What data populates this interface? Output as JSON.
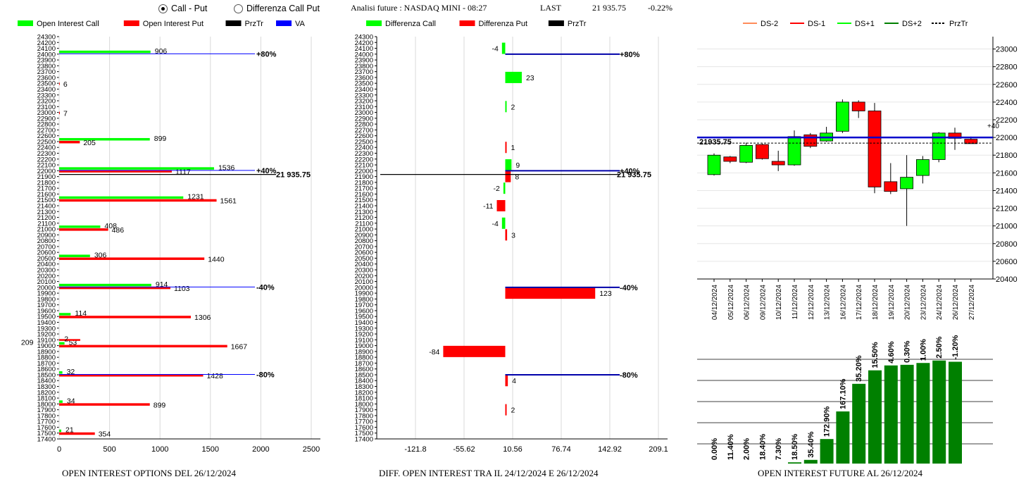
{
  "header": {
    "radio_call_put": "Call - Put",
    "radio_diff": "Differenza Call Put",
    "info": "Analisi future : NASDAQ MINI - 08:27",
    "last_label": "LAST",
    "last_value": "21 935.75",
    "last_change": "-0.22%"
  },
  "footers": {
    "left": "OPEN INTEREST OPTIONS DEL 26/12/2024",
    "middle": "DIFF. OPEN INTEREST TRA IL 24/12/2024 E 26/12/2024",
    "right": "OPEN INTEREST FUTURE AL 26/12/2024"
  },
  "colors": {
    "call": "#00ff00",
    "put": "#ff0000",
    "va": "#0000ff",
    "prztr": "#000000",
    "green_dark": "#008000"
  },
  "chart_data": [
    {
      "type": "bar",
      "id": "oi_options",
      "legend": [
        "Open Interest Call",
        "Open Interest Put",
        "PrzTr",
        "VA"
      ],
      "ylim": [
        17400,
        24300
      ],
      "y_tick_step": 100,
      "xlim": [
        0,
        2500
      ],
      "x_ticks": [
        "0",
        "500",
        "1000",
        "1500",
        "2000",
        "2500"
      ],
      "strikes": [
        24000,
        23500,
        23000,
        22500,
        22000,
        21500,
        21000,
        20500,
        20000,
        19500,
        19000,
        18500,
        18000,
        17500
      ],
      "call": [
        906,
        0,
        0,
        899,
        1536,
        1231,
        408,
        306,
        914,
        114,
        53,
        32,
        34,
        21
      ],
      "put": [
        0,
        6,
        7,
        205,
        1117,
        1561,
        486,
        1440,
        1103,
        1306,
        1667,
        1428,
        899,
        354
      ],
      "call_labels": [
        "906",
        "",
        "",
        "899",
        "1536",
        "1231",
        "408",
        "306",
        "914",
        "114",
        "53",
        "32",
        "34",
        "21"
      ],
      "put_labels": [
        "",
        "6",
        "7",
        "205",
        "1117",
        "1561",
        "486",
        "1440",
        "1103",
        "1306",
        "1667",
        "1428",
        "899",
        "354"
      ],
      "extra_labels": [
        {
          "strike": 19100,
          "text": "2"
        },
        {
          "strike": 19100,
          "text": "209",
          "offset": true
        }
      ],
      "va_lines": [
        {
          "strike": 24000,
          "label": "+80%"
        },
        {
          "strike": 22000,
          "label": "+40%"
        },
        {
          "strike": 20000,
          "label": "-40%"
        },
        {
          "strike": 18500,
          "label": "-80%"
        }
      ],
      "prztr": {
        "value": 21935.75,
        "label": "21 935.75"
      }
    },
    {
      "type": "bar",
      "id": "diff_oi",
      "legend": [
        "Differenza Call",
        "Differenza Put",
        "PrzTr"
      ],
      "ylim": [
        17400,
        24300
      ],
      "y_tick_step": 100,
      "xlim": [
        -121.8,
        209.1
      ],
      "x_ticks": [
        "-121.8",
        "-55.62",
        "10.56",
        "76.74",
        "142.92",
        "209.1"
      ],
      "bars": [
        {
          "strike": 24100,
          "value": -4,
          "type": "call",
          "label": "-4"
        },
        {
          "strike": 23600,
          "value": 23,
          "type": "call",
          "label": "23"
        },
        {
          "strike": 23100,
          "value": 2,
          "type": "call",
          "label": "2"
        },
        {
          "strike": 22400,
          "value": 1,
          "type": "put",
          "label": "1"
        },
        {
          "strike": 22100,
          "value": 9,
          "type": "call",
          "label": "9"
        },
        {
          "strike": 21900,
          "value": 8,
          "type": "put",
          "label": "8"
        },
        {
          "strike": 21700,
          "value": -2,
          "type": "call",
          "label": "-2"
        },
        {
          "strike": 21400,
          "value": -11,
          "type": "put",
          "label": "-11"
        },
        {
          "strike": 21100,
          "value": -4,
          "type": "call",
          "label": "-4"
        },
        {
          "strike": 20900,
          "value": 3,
          "type": "put",
          "label": "3"
        },
        {
          "strike": 19900,
          "value": 123,
          "type": "put",
          "label": "123"
        },
        {
          "strike": 18900,
          "value": -84,
          "type": "put",
          "label": "-84"
        },
        {
          "strike": 18400,
          "value": 4,
          "type": "put",
          "label": "4"
        },
        {
          "strike": 17900,
          "value": 2,
          "type": "put",
          "label": "2"
        }
      ],
      "va_lines": [
        {
          "strike": 24000,
          "label": "+80%"
        },
        {
          "strike": 22000,
          "label": "+40%"
        },
        {
          "strike": 20000,
          "label": "-40%"
        },
        {
          "strike": 18500,
          "label": "-80%"
        }
      ],
      "prztr": {
        "value": 21935.75,
        "label": "21 935.75"
      }
    },
    {
      "type": "candlestick",
      "id": "future_candles",
      "legend": [
        "DS-2",
        "DS-1",
        "DS+1",
        "DS+2",
        "PrzTr"
      ],
      "legend_colors": [
        "#ff8c5a",
        "#ff0000",
        "#00ff00",
        "#008000",
        "#000000"
      ],
      "ylim": [
        20400,
        23100
      ],
      "y_ticks": [
        20400,
        20600,
        20800,
        21000,
        21200,
        21400,
        21600,
        21800,
        22000,
        22200,
        22400,
        22600,
        22800,
        23000
      ],
      "dates": [
        "04/12/2024",
        "05/12/2024",
        "06/12/2024",
        "09/12/2024",
        "10/12/2024",
        "11/12/2024",
        "12/12/2024",
        "13/12/2024",
        "16/12/2024",
        "17/12/2024",
        "18/12/2024",
        "19/12/2024",
        "20/12/2024",
        "23/12/2024",
        "24/12/2024",
        "26/12/2024",
        "27/12/2024"
      ],
      "candles": [
        {
          "o": 21580,
          "h": 21820,
          "l": 21570,
          "c": 21800
        },
        {
          "o": 21780,
          "h": 21790,
          "l": 21710,
          "c": 21730
        },
        {
          "o": 21720,
          "h": 21940,
          "l": 21710,
          "c": 21910
        },
        {
          "o": 21920,
          "h": 21930,
          "l": 21750,
          "c": 21760
        },
        {
          "o": 21730,
          "h": 21850,
          "l": 21620,
          "c": 21690
        },
        {
          "o": 21690,
          "h": 22080,
          "l": 21680,
          "c": 22010
        },
        {
          "o": 22030,
          "h": 22050,
          "l": 21880,
          "c": 21900
        },
        {
          "o": 21960,
          "h": 22120,
          "l": 21950,
          "c": 22050
        },
        {
          "o": 22070,
          "h": 22430,
          "l": 22050,
          "c": 22400
        },
        {
          "o": 22400,
          "h": 22420,
          "l": 22220,
          "c": 22300
        },
        {
          "o": 22300,
          "h": 22390,
          "l": 21370,
          "c": 21440
        },
        {
          "o": 21500,
          "h": 21710,
          "l": 21360,
          "c": 21390
        },
        {
          "o": 21420,
          "h": 21800,
          "l": 21000,
          "c": 21550
        },
        {
          "o": 21570,
          "h": 21790,
          "l": 21480,
          "c": 21750
        },
        {
          "o": 21750,
          "h": 22060,
          "l": 21720,
          "c": 22050
        },
        {
          "o": 22050,
          "h": 22110,
          "l": 21860,
          "c": 21990
        },
        {
          "o": 21980,
          "h": 22010,
          "l": 21930,
          "c": 21930
        }
      ],
      "right_labels": [
        {
          "value": 22090,
          "label": "+40"
        }
      ],
      "va_line": 22000,
      "prztr": {
        "value": 21935.75,
        "label": "21935.75"
      }
    },
    {
      "type": "bar",
      "id": "future_oi",
      "categories": [
        "04/12/2024",
        "05/12/2024",
        "06/12/2024",
        "09/12/2024",
        "10/12/2024",
        "11/12/2024",
        "12/12/2024",
        "13/12/2024",
        "16/12/2024",
        "17/12/2024",
        "18/12/2024",
        "19/12/2024",
        "20/12/2024",
        "23/12/2024",
        "24/12/2024",
        "26/12/2024"
      ],
      "values": [
        0,
        0,
        0,
        0,
        0,
        2,
        6,
        40,
        85,
        130,
        152,
        160,
        161,
        164,
        168,
        166
      ],
      "labels": [
        "0.00%",
        "11.40%",
        "2.00%",
        "18.40%",
        "7.30%",
        "18.50%",
        "35.40%",
        "172.90%",
        "167.10%",
        "35.20%",
        "15.50%",
        "4.60%",
        "0.30%",
        "1.00%",
        "2.50%",
        "-1.20%"
      ]
    }
  ]
}
